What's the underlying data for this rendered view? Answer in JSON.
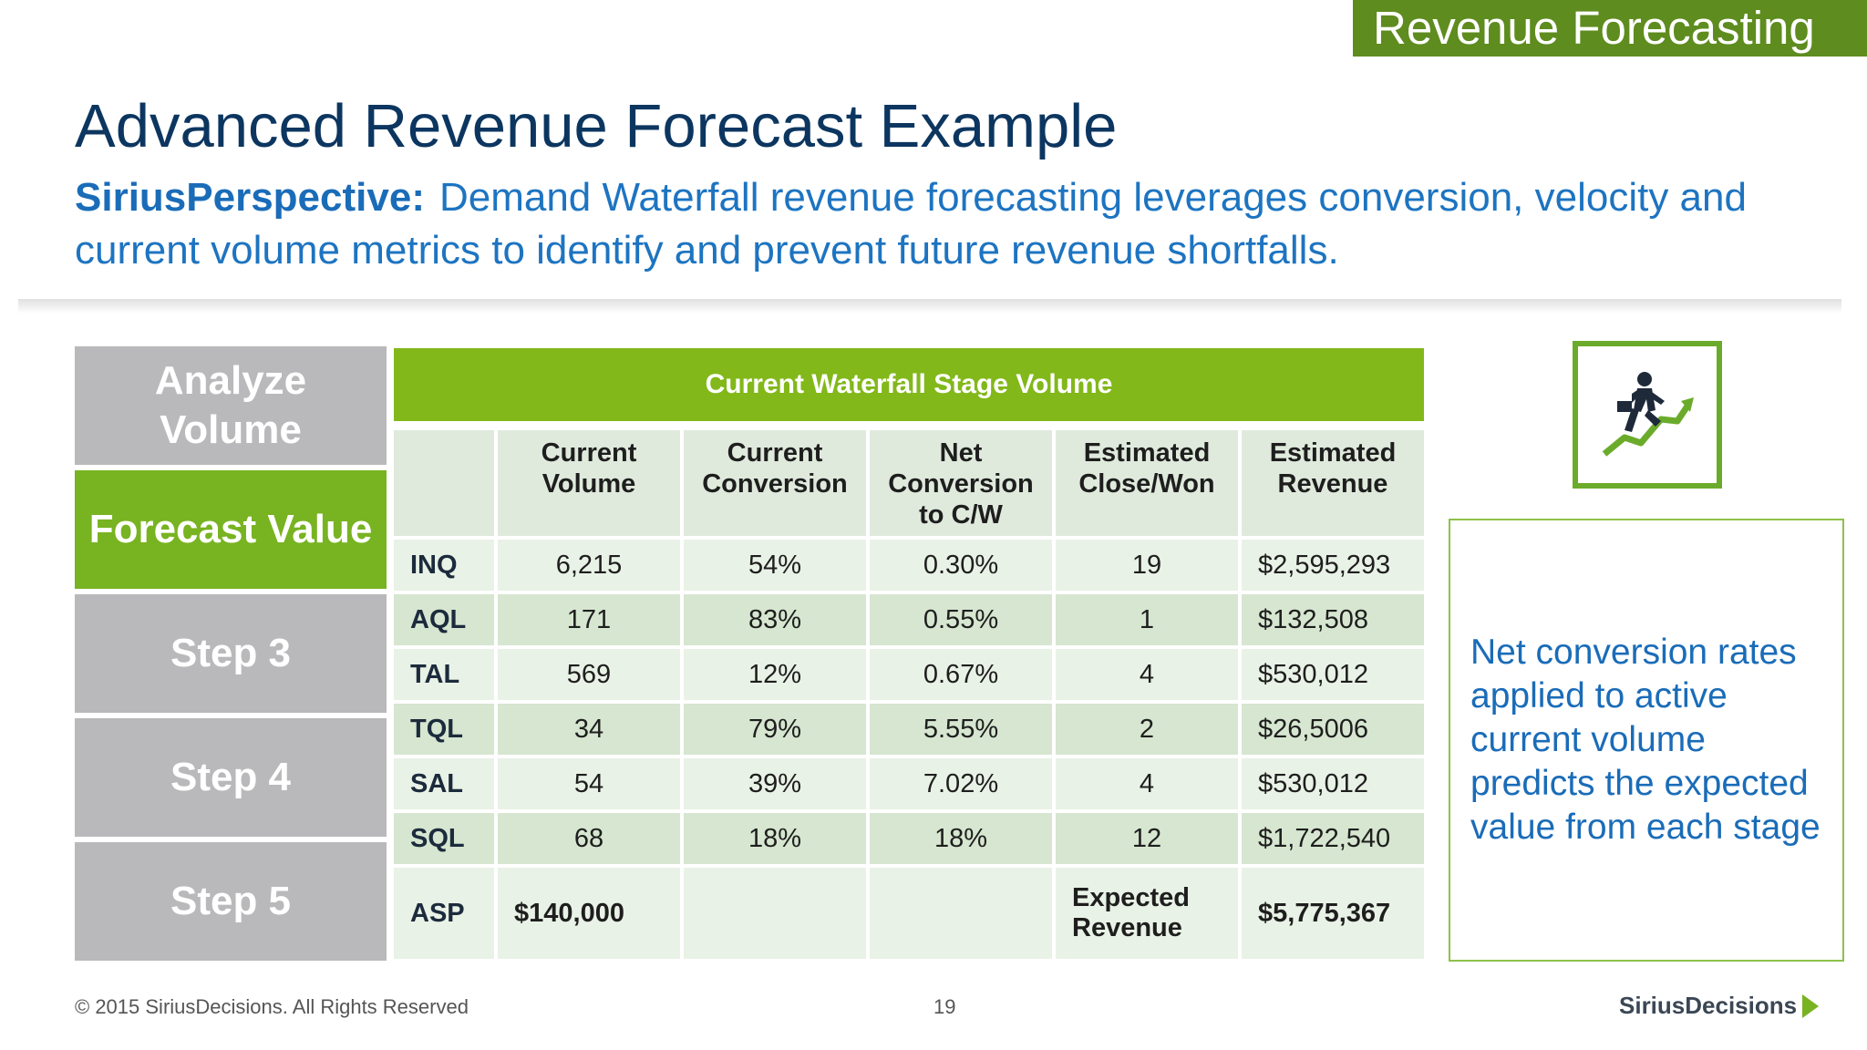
{
  "header": {
    "section_tab": "Revenue Forecasting",
    "title": "Advanced Revenue Forecast Example",
    "perspective_label": "SiriusPerspective:",
    "perspective_text": "Demand Waterfall revenue forecasting leverages conversion, velocity and current volume metrics to identify and prevent future revenue shortfalls."
  },
  "steps": [
    {
      "label": "Analyze Volume",
      "active": false
    },
    {
      "label": "Forecast Value",
      "active": true
    },
    {
      "label": "Step 3",
      "active": false
    },
    {
      "label": "Step 4",
      "active": false
    },
    {
      "label": "Step 5",
      "active": false
    }
  ],
  "table": {
    "title": "Current Waterfall Stage Volume",
    "columns": [
      "",
      "Current Volume",
      "Current Conversion",
      "Net Conversion to C/W",
      "Estimated Close/Won",
      "Estimated Revenue"
    ],
    "rows": [
      [
        "INQ",
        "6,215",
        "54%",
        "0.30%",
        "19",
        "$2,595,293"
      ],
      [
        "AQL",
        "171",
        "83%",
        "0.55%",
        "1",
        "$132,508"
      ],
      [
        "TAL",
        "569",
        "12%",
        "0.67%",
        "4",
        "$530,012"
      ],
      [
        "TQL",
        "34",
        "79%",
        "5.55%",
        "2",
        "$26,5006"
      ],
      [
        "SAL",
        "54",
        "39%",
        "7.02%",
        "4",
        "$530,012"
      ],
      [
        "SQL",
        "68",
        "18%",
        "18%",
        "12",
        "$1,722,540"
      ]
    ],
    "asp_row": {
      "label": "ASP",
      "value": "$140,000",
      "expected_label": "Expected Revenue",
      "expected_value": "$5,775,367"
    }
  },
  "icon": {
    "name": "businessman-climbing-growth-icon",
    "color": "#6bab2b"
  },
  "note": "Net conversion rates applied to active current volume predicts the expected value from each stage",
  "footer": {
    "copyright": "© 2015 SiriusDecisions. All Rights Reserved",
    "page": "19",
    "logo": "SiriusDecisions"
  },
  "colors": {
    "accent_green": "#78b321",
    "header_green": "#82b81a",
    "title_blue": "#0c3660",
    "text_blue": "#1a6cb8",
    "step_gray": "#b9b9bb"
  }
}
